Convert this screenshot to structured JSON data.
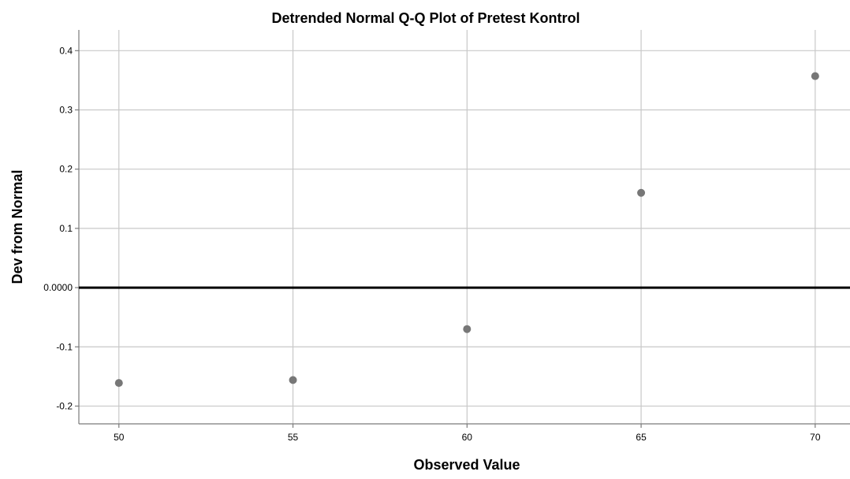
{
  "chart_data": {
    "type": "scatter",
    "title": "Detrended Normal Q-Q Plot of Pretest Kontrol",
    "xlabel": "Observed Value",
    "ylabel": "Dev from Normal",
    "x_ticks": [
      50,
      55,
      60,
      65,
      70
    ],
    "x_tick_labels": [
      "50",
      "55",
      "60",
      "65",
      "70"
    ],
    "y_ticks": [
      -0.2,
      -0.1,
      0.0,
      0.1,
      0.2,
      0.3,
      0.4
    ],
    "y_tick_labels": [
      "-0.2",
      "-0.1",
      "0.0000",
      "0.1",
      "0.2",
      "0.3",
      "0.4"
    ],
    "xlim": [
      48.85,
      71.0
    ],
    "ylim": [
      -0.23,
      0.435
    ],
    "reference_line_y": 0.0,
    "grid": true,
    "legend": "none",
    "point_color": "#777777",
    "points": [
      {
        "x": 50,
        "y": -0.161
      },
      {
        "x": 55,
        "y": -0.156
      },
      {
        "x": 60,
        "y": -0.07
      },
      {
        "x": 65,
        "y": 0.16
      },
      {
        "x": 70,
        "y": 0.357
      }
    ]
  }
}
